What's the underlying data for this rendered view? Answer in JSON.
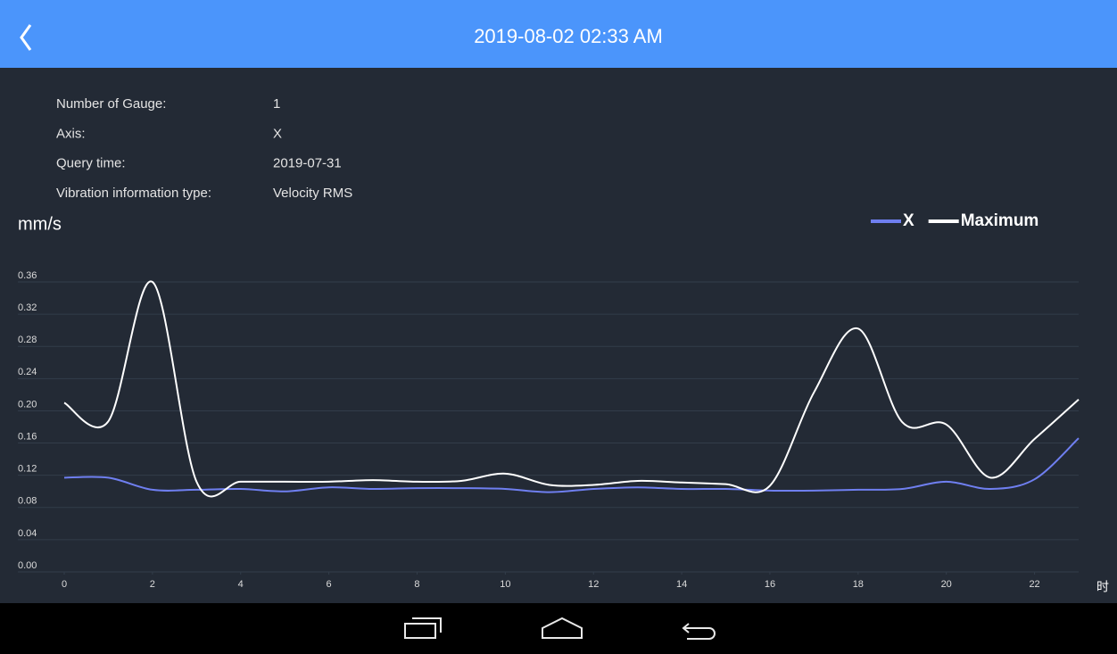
{
  "header": {
    "title": "2019-08-02 02:33 AM"
  },
  "info": {
    "rows": [
      {
        "label": "Number of Gauge:",
        "value": "1"
      },
      {
        "label": "Axis:",
        "value": "X"
      },
      {
        "label": "Query time:",
        "value": "2019-07-31"
      },
      {
        "label": "Vibration information type:",
        "value": "Velocity RMS"
      }
    ]
  },
  "chart_data": {
    "type": "line",
    "y_label": "mm/s",
    "x_label": "时",
    "x": [
      0,
      1,
      2,
      3,
      4,
      5,
      6,
      7,
      8,
      9,
      10,
      11,
      12,
      13,
      14,
      15,
      16,
      17,
      18,
      19,
      20,
      21,
      22,
      23
    ],
    "xlim": [
      0,
      23
    ],
    "xticks": [
      0,
      2,
      4,
      6,
      8,
      10,
      12,
      14,
      16,
      18,
      20,
      22
    ],
    "ylim": [
      0,
      0.36
    ],
    "yticks": [
      {
        "value": 0,
        "label": "0.00"
      },
      {
        "value": 0.04,
        "label": "0.04"
      },
      {
        "value": 0.08,
        "label": "0.08"
      },
      {
        "value": 0.12,
        "label": "0.12"
      },
      {
        "value": 0.16,
        "label": "0.16"
      },
      {
        "value": 0.2,
        "label": "0.20"
      },
      {
        "value": 0.24,
        "label": "0.24"
      },
      {
        "value": 0.28,
        "label": "0.28"
      },
      {
        "value": 0.32,
        "label": "0.32"
      },
      {
        "value": 0.36,
        "label": "0.36"
      }
    ],
    "grid": true,
    "legend": "top-right",
    "series": [
      {
        "name": "X",
        "color": "#6f7ff0",
        "values": [
          0.117,
          0.117,
          0.102,
          0.102,
          0.103,
          0.1,
          0.105,
          0.103,
          0.104,
          0.104,
          0.103,
          0.099,
          0.103,
          0.105,
          0.103,
          0.103,
          0.101,
          0.101,
          0.102,
          0.103,
          0.112,
          0.103,
          0.115,
          0.166
        ]
      },
      {
        "name": "Maximum",
        "color": "#ffffff",
        "values": [
          0.21,
          0.187,
          0.36,
          0.112,
          0.112,
          0.112,
          0.112,
          0.114,
          0.112,
          0.113,
          0.122,
          0.108,
          0.108,
          0.113,
          0.111,
          0.109,
          0.107,
          0.223,
          0.302,
          0.186,
          0.183,
          0.117,
          0.165,
          0.214
        ]
      }
    ]
  }
}
